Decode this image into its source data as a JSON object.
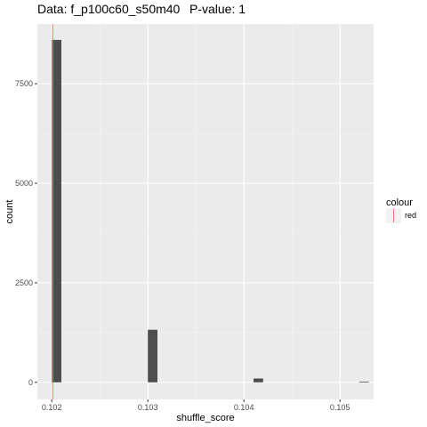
{
  "chart_data": {
    "type": "bar",
    "title": "Data: f_p100c60_s50m40",
    "subtitle": "P-value: 1",
    "xlabel": "shuffle_score",
    "ylabel": "count",
    "xlim": [
      0.10185,
      0.10535
    ],
    "ylim": [
      -430,
      9000
    ],
    "x_ticks": [
      0.102,
      0.103,
      0.104,
      0.105
    ],
    "x_tick_labels": [
      "0.102",
      "0.103",
      "0.104",
      "0.105"
    ],
    "y_ticks": [
      0,
      2500,
      5000,
      7500
    ],
    "y_tick_labels": [
      "0",
      "2500",
      "5000",
      "7500"
    ],
    "bin_width": 0.0001,
    "bars": [
      {
        "x": 0.10205,
        "count": 8600
      },
      {
        "x": 0.10305,
        "count": 1320
      },
      {
        "x": 0.10415,
        "count": 95
      },
      {
        "x": 0.10525,
        "count": 10
      }
    ],
    "observed_line": {
      "x": 0.10201,
      "color": "#f8766d"
    },
    "legend": {
      "title": "colour",
      "entries": [
        {
          "label": "red",
          "color": "#f8766d"
        }
      ]
    },
    "grid": true,
    "panel_background": "#ebebeb",
    "bar_color": "#4d4d4d"
  }
}
